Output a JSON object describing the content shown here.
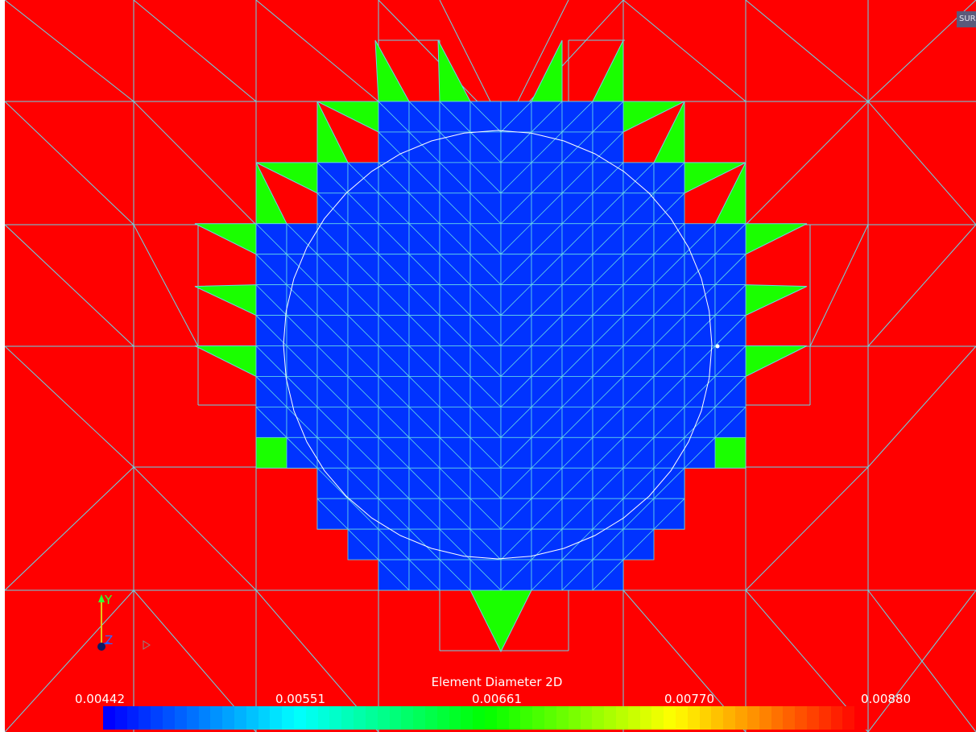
{
  "view": {
    "mode_badge": "SUR"
  },
  "axes": {
    "y_label": "Y",
    "z_label": "Z"
  },
  "legend": {
    "title": "Element Diameter 2D",
    "ticks": [
      "0.00442",
      "0.00551",
      "0.00661",
      "0.00770",
      "0.00880"
    ]
  },
  "colors": {
    "coarse": "#ff0000",
    "transition": "#1aff00",
    "fine": "#0033ff",
    "edges": "#66d9e8",
    "outline": "#ffffff"
  }
}
